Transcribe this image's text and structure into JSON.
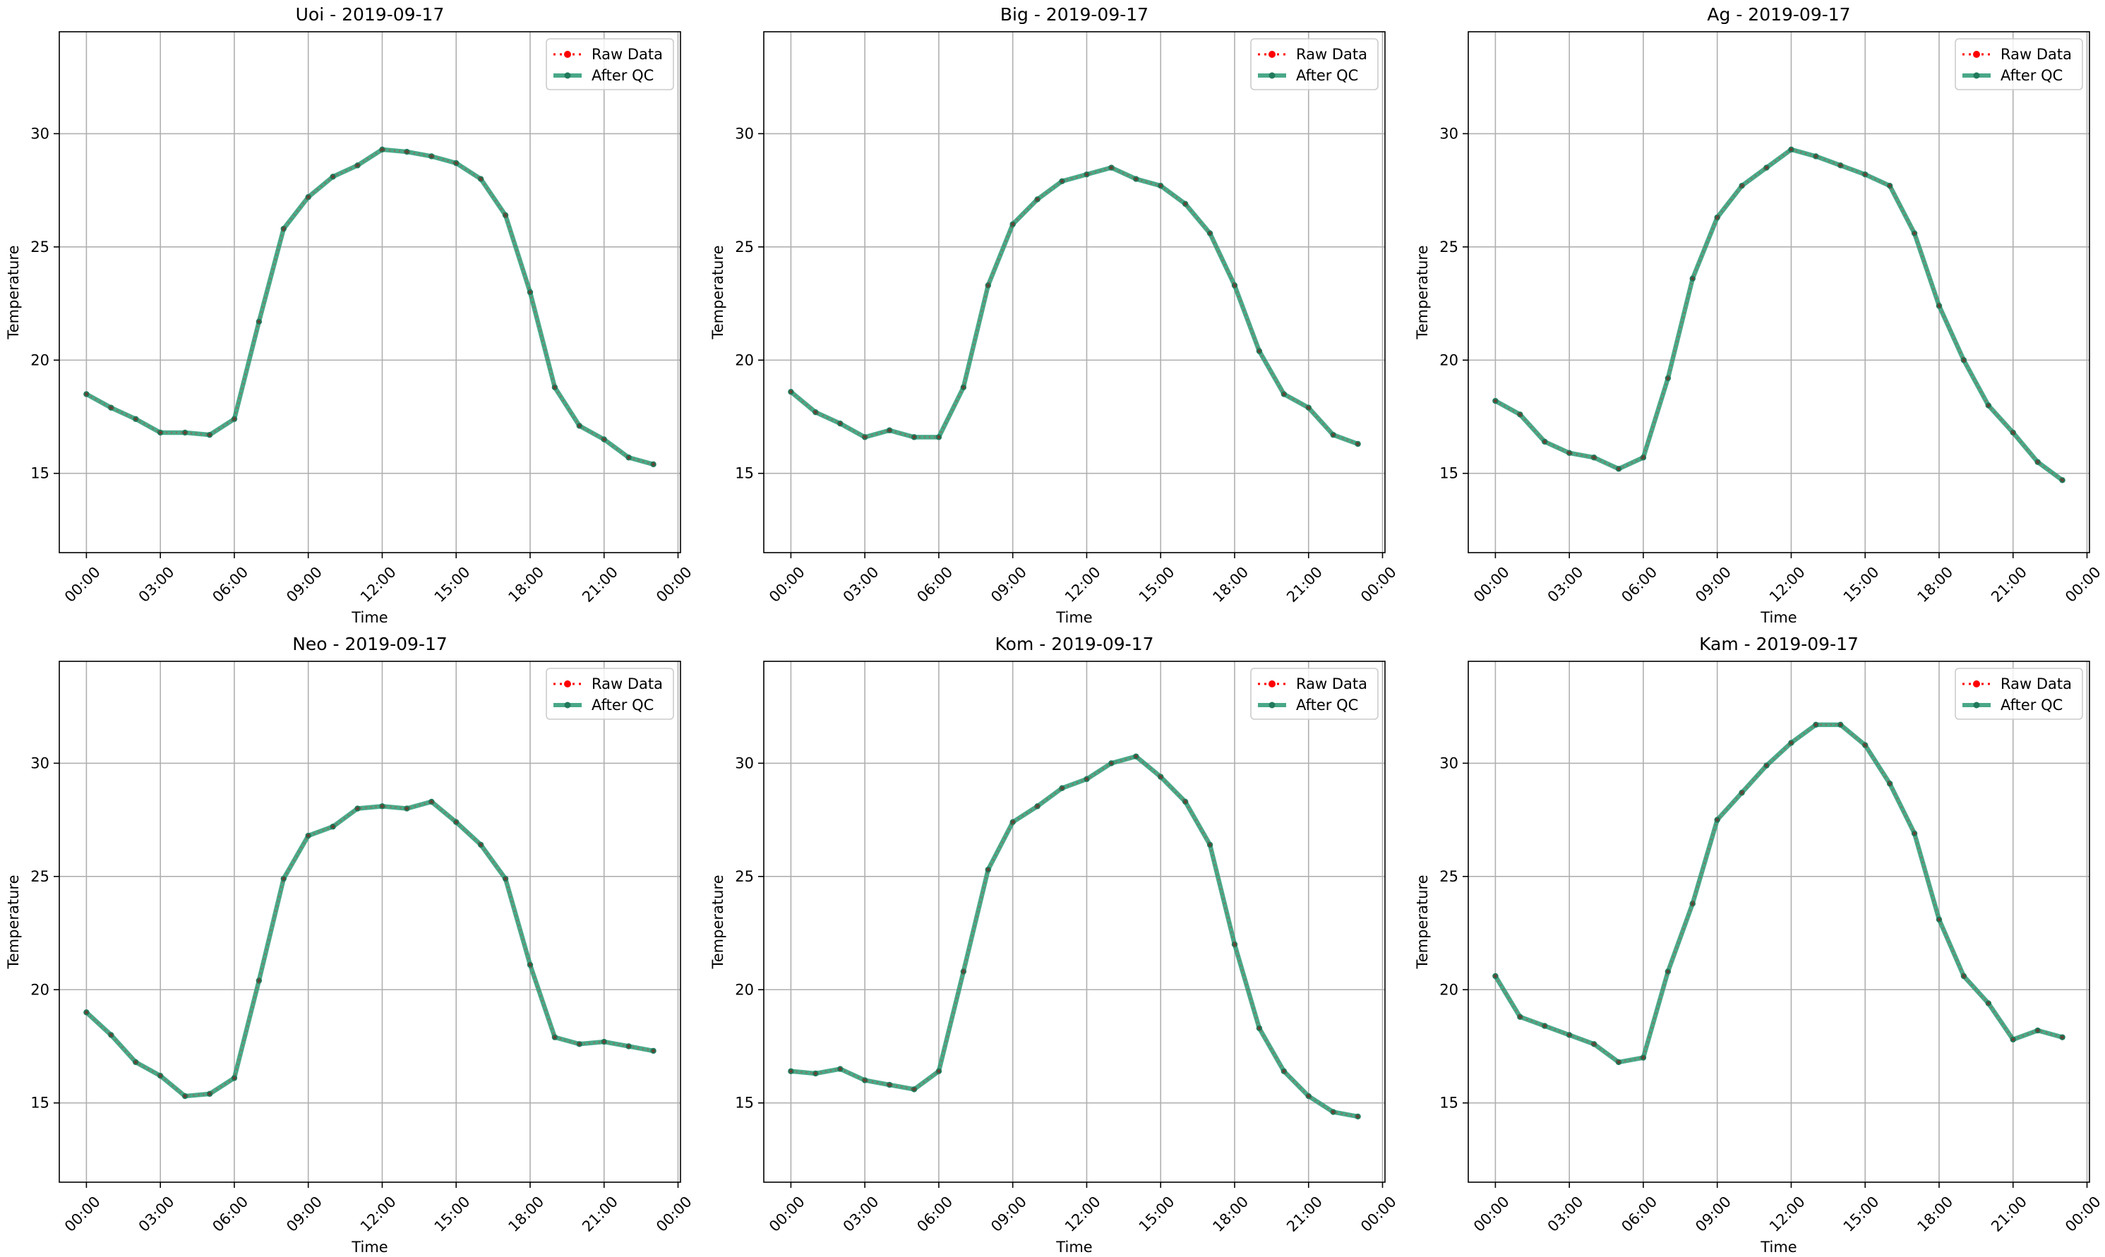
{
  "chart_data": [
    {
      "type": "line",
      "title": "Uoi - 2019-09-17",
      "xlabel": "Time",
      "ylabel": "Temperature",
      "x_tick_labels": [
        "00:00",
        "03:00",
        "06:00",
        "09:00",
        "12:00",
        "15:00",
        "18:00",
        "21:00",
        "00:00"
      ],
      "y_tick_labels": [
        "15",
        "20",
        "25",
        "30"
      ],
      "ylim": [
        11.5,
        34.5
      ],
      "grid": true,
      "legend_position": "top-right",
      "series": [
        {
          "name": "Raw Data",
          "color": "#ff0000",
          "values": [
            18.5,
            17.9,
            17.4,
            16.8,
            16.8,
            16.7,
            17.4,
            21.7,
            25.8,
            27.2,
            28.1,
            28.6,
            29.3,
            29.2,
            29.0,
            28.7,
            28.0,
            26.4,
            23.0,
            18.8,
            17.1,
            16.5,
            15.7,
            15.4
          ]
        },
        {
          "name": "After QC",
          "color": "#2a9a74",
          "values": [
            18.5,
            17.9,
            17.4,
            16.8,
            16.8,
            16.7,
            17.4,
            21.7,
            25.8,
            27.2,
            28.1,
            28.6,
            29.3,
            29.2,
            29.0,
            28.7,
            28.0,
            26.4,
            23.0,
            18.8,
            17.1,
            16.5,
            15.7,
            15.4
          ]
        }
      ]
    },
    {
      "type": "line",
      "title": "Big - 2019-09-17",
      "xlabel": "Time",
      "ylabel": "Temperature",
      "x_tick_labels": [
        "00:00",
        "03:00",
        "06:00",
        "09:00",
        "12:00",
        "15:00",
        "18:00",
        "21:00",
        "00:00"
      ],
      "y_tick_labels": [
        "15",
        "20",
        "25",
        "30"
      ],
      "ylim": [
        11.5,
        34.5
      ],
      "grid": true,
      "legend_position": "top-right",
      "series": [
        {
          "name": "Raw Data",
          "color": "#ff0000",
          "values": [
            18.6,
            17.7,
            17.2,
            16.6,
            16.9,
            16.6,
            16.6,
            18.8,
            23.3,
            26.0,
            27.1,
            27.9,
            28.2,
            28.5,
            28.0,
            27.7,
            26.9,
            25.6,
            23.3,
            20.4,
            18.5,
            17.9,
            16.7,
            16.3
          ]
        },
        {
          "name": "After QC",
          "color": "#2a9a74",
          "values": [
            18.6,
            17.7,
            17.2,
            16.6,
            16.9,
            16.6,
            16.6,
            18.8,
            23.3,
            26.0,
            27.1,
            27.9,
            28.2,
            28.5,
            28.0,
            27.7,
            26.9,
            25.6,
            23.3,
            20.4,
            18.5,
            17.9,
            16.7,
            16.3
          ]
        }
      ]
    },
    {
      "type": "line",
      "title": "Ag - 2019-09-17",
      "xlabel": "Time",
      "ylabel": "Temperature",
      "x_tick_labels": [
        "00:00",
        "03:00",
        "06:00",
        "09:00",
        "12:00",
        "15:00",
        "18:00",
        "21:00",
        "00:00"
      ],
      "y_tick_labels": [
        "15",
        "20",
        "25",
        "30"
      ],
      "ylim": [
        11.5,
        34.5
      ],
      "grid": true,
      "legend_position": "top-right",
      "series": [
        {
          "name": "Raw Data",
          "color": "#ff0000",
          "values": [
            18.2,
            17.6,
            16.4,
            15.9,
            15.7,
            15.2,
            15.7,
            19.2,
            23.6,
            26.3,
            27.7,
            28.5,
            29.3,
            29.0,
            28.6,
            28.2,
            27.7,
            25.6,
            22.4,
            20.0,
            18.0,
            16.8,
            15.5,
            14.7
          ]
        },
        {
          "name": "After QC",
          "color": "#2a9a74",
          "values": [
            18.2,
            17.6,
            16.4,
            15.9,
            15.7,
            15.2,
            15.7,
            19.2,
            23.6,
            26.3,
            27.7,
            28.5,
            29.3,
            29.0,
            28.6,
            28.2,
            27.7,
            25.6,
            22.4,
            20.0,
            18.0,
            16.8,
            15.5,
            14.7
          ]
        }
      ]
    },
    {
      "type": "line",
      "title": "Neo - 2019-09-17",
      "xlabel": "Time",
      "ylabel": "Temperature",
      "x_tick_labels": [
        "00:00",
        "03:00",
        "06:00",
        "09:00",
        "12:00",
        "15:00",
        "18:00",
        "21:00",
        "00:00"
      ],
      "y_tick_labels": [
        "15",
        "20",
        "25",
        "30"
      ],
      "ylim": [
        11.5,
        34.5
      ],
      "grid": true,
      "legend_position": "top-right",
      "series": [
        {
          "name": "Raw Data",
          "color": "#ff0000",
          "values": [
            19.0,
            18.0,
            16.8,
            16.2,
            15.3,
            15.4,
            16.1,
            20.4,
            24.9,
            26.8,
            27.2,
            28.0,
            28.1,
            28.0,
            28.3,
            27.4,
            26.4,
            24.9,
            21.1,
            17.9,
            17.6,
            17.7,
            17.5,
            17.3
          ]
        },
        {
          "name": "After QC",
          "color": "#2a9a74",
          "values": [
            19.0,
            18.0,
            16.8,
            16.2,
            15.3,
            15.4,
            16.1,
            20.4,
            24.9,
            26.8,
            27.2,
            28.0,
            28.1,
            28.0,
            28.3,
            27.4,
            26.4,
            24.9,
            21.1,
            17.9,
            17.6,
            17.7,
            17.5,
            17.3
          ]
        }
      ]
    },
    {
      "type": "line",
      "title": "Kom - 2019-09-17",
      "xlabel": "Time",
      "ylabel": "Temperature",
      "x_tick_labels": [
        "00:00",
        "03:00",
        "06:00",
        "09:00",
        "12:00",
        "15:00",
        "18:00",
        "21:00",
        "00:00"
      ],
      "y_tick_labels": [
        "15",
        "20",
        "25",
        "30"
      ],
      "ylim": [
        11.5,
        34.5
      ],
      "grid": true,
      "legend_position": "top-right",
      "series": [
        {
          "name": "Raw Data",
          "color": "#ff0000",
          "values": [
            16.4,
            16.3,
            16.5,
            16.0,
            15.8,
            15.6,
            16.4,
            20.8,
            25.3,
            27.4,
            28.1,
            28.9,
            29.3,
            30.0,
            30.3,
            29.4,
            28.3,
            26.4,
            22.0,
            18.3,
            16.4,
            15.3,
            14.6,
            14.4
          ]
        },
        {
          "name": "After QC",
          "color": "#2a9a74",
          "values": [
            16.4,
            16.3,
            16.5,
            16.0,
            15.8,
            15.6,
            16.4,
            20.8,
            25.3,
            27.4,
            28.1,
            28.9,
            29.3,
            30.0,
            30.3,
            29.4,
            28.3,
            26.4,
            22.0,
            18.3,
            16.4,
            15.3,
            14.6,
            14.4
          ]
        }
      ]
    },
    {
      "type": "line",
      "title": "Kam - 2019-09-17",
      "xlabel": "Time",
      "ylabel": "Temperature",
      "x_tick_labels": [
        "00:00",
        "03:00",
        "06:00",
        "09:00",
        "12:00",
        "15:00",
        "18:00",
        "21:00",
        "00:00"
      ],
      "y_tick_labels": [
        "15",
        "20",
        "25",
        "30"
      ],
      "ylim": [
        11.5,
        34.5
      ],
      "grid": true,
      "legend_position": "top-right",
      "series": [
        {
          "name": "Raw Data",
          "color": "#ff0000",
          "values": [
            20.6,
            18.8,
            18.4,
            18.0,
            17.6,
            16.8,
            17.0,
            20.8,
            23.8,
            27.5,
            28.7,
            29.9,
            30.9,
            31.7,
            31.7,
            30.8,
            29.1,
            26.9,
            23.1,
            20.6,
            19.4,
            17.8,
            18.2,
            17.9
          ]
        },
        {
          "name": "After QC",
          "color": "#2a9a74",
          "values": [
            20.6,
            18.8,
            18.4,
            18.0,
            17.6,
            16.8,
            17.0,
            20.8,
            23.8,
            27.5,
            28.7,
            29.9,
            30.9,
            31.7,
            31.7,
            30.8,
            29.1,
            26.9,
            23.1,
            20.6,
            19.4,
            17.8,
            18.2,
            17.9
          ]
        }
      ]
    }
  ]
}
